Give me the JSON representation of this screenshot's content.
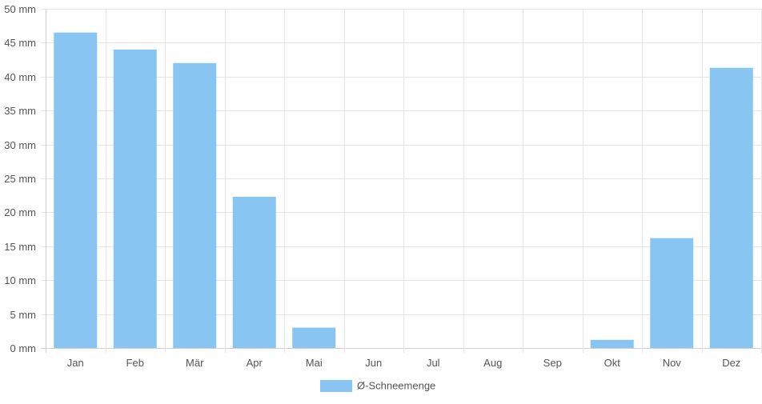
{
  "chart_data": {
    "type": "bar",
    "categories": [
      "Jan",
      "Feb",
      "Mär",
      "Apr",
      "Mai",
      "Jun",
      "Jul",
      "Aug",
      "Sep",
      "Okt",
      "Nov",
      "Dez"
    ],
    "series": [
      {
        "name": "Ø-Schneemenge",
        "values": [
          46.5,
          44.0,
          42.0,
          22.3,
          3.0,
          0,
          0,
          0,
          0,
          1.2,
          16.2,
          41.3
        ],
        "color": "#88c5f2"
      }
    ],
    "y_unit": "mm",
    "ylim": [
      0,
      50
    ],
    "y_ticks": [
      0,
      5,
      10,
      15,
      20,
      25,
      30,
      35,
      40,
      45,
      50
    ],
    "y_tick_labels": [
      "0 mm",
      "5 mm",
      "10 mm",
      "15 mm",
      "20 mm",
      "25 mm",
      "30 mm",
      "35 mm",
      "40 mm",
      "45 mm",
      "50 mm"
    ],
    "grid": true,
    "legend_position": "bottom-center",
    "title": "",
    "xlabel": "",
    "ylabel": ""
  }
}
